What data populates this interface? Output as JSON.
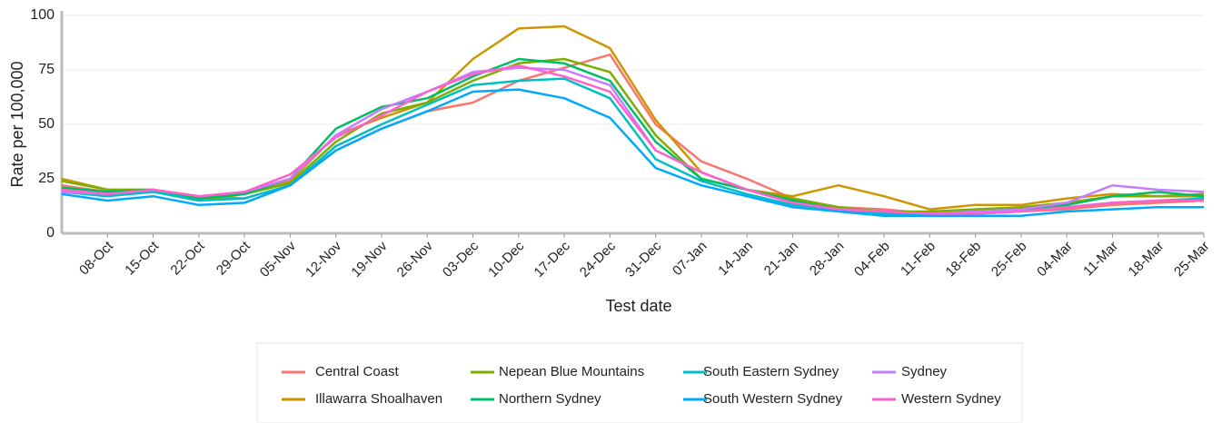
{
  "chart_data": {
    "type": "line",
    "x_label": "Test date",
    "y_label": "Rate per 100,000",
    "categories": [
      null,
      "08-Oct",
      "15-Oct",
      "22-Oct",
      "29-Oct",
      "05-Nov",
      "12-Nov",
      "19-Nov",
      "26-Nov",
      "03-Dec",
      "10-Dec",
      "17-Dec",
      "24-Dec",
      "31-Dec",
      "07-Jan",
      "14-Jan",
      "21-Jan",
      "28-Jan",
      "04-Feb",
      "11-Feb",
      "18-Feb",
      "25-Feb",
      "04-Mar",
      "11-Mar",
      "18-Mar",
      "25-Mar"
    ],
    "ylim": [
      0,
      100
    ],
    "yticks": [
      0,
      25,
      50,
      75,
      100
    ],
    "grid": true,
    "series": [
      {
        "name": "Central Coast",
        "color": "#F8766D",
        "values": [
          22,
          19,
          20,
          17,
          16,
          22,
          38,
          48,
          56,
          60,
          70,
          76,
          82,
          50,
          33,
          25,
          16,
          12,
          11,
          9,
          9,
          10,
          11,
          13,
          14,
          15
        ]
      },
      {
        "name": "Illawarra Shoalhaven",
        "color": "#CD9600",
        "values": [
          25,
          20,
          20,
          17,
          18,
          24,
          45,
          53,
          60,
          80,
          94,
          95,
          85,
          52,
          28,
          20,
          17,
          22,
          17,
          11,
          13,
          13,
          16,
          18,
          17,
          17
        ]
      },
      {
        "name": "Nepean Blue Mountains",
        "color": "#7CAE00",
        "values": [
          24,
          20,
          20,
          15,
          18,
          23,
          42,
          55,
          60,
          70,
          78,
          80,
          74,
          45,
          25,
          20,
          16,
          12,
          10,
          10,
          11,
          12,
          14,
          17,
          17,
          18
        ]
      },
      {
        "name": "Northern Sydney",
        "color": "#00BE67",
        "values": [
          21,
          19,
          20,
          16,
          18,
          25,
          48,
          58,
          62,
          72,
          80,
          78,
          70,
          42,
          25,
          20,
          15,
          11,
          9,
          9,
          10,
          11,
          13,
          17,
          19,
          17
        ]
      },
      {
        "name": "South Eastern Sydney",
        "color": "#00BFC4",
        "values": [
          19,
          17,
          19,
          15,
          16,
          22,
          40,
          50,
          59,
          68,
          70,
          71,
          62,
          34,
          24,
          18,
          13,
          11,
          9,
          8,
          9,
          10,
          12,
          14,
          15,
          16
        ]
      },
      {
        "name": "South Western Sydney",
        "color": "#00A9FF",
        "values": [
          18,
          15,
          17,
          13,
          14,
          22,
          38,
          48,
          56,
          65,
          66,
          62,
          53,
          30,
          22,
          17,
          12,
          10,
          8,
          8,
          8,
          8,
          10,
          11,
          12,
          12
        ]
      },
      {
        "name": "Sydney",
        "color": "#C77CFF",
        "values": [
          19,
          18,
          20,
          17,
          19,
          25,
          45,
          57,
          65,
          74,
          76,
          75,
          68,
          38,
          28,
          20,
          14,
          11,
          10,
          9,
          10,
          11,
          14,
          22,
          20,
          19
        ]
      },
      {
        "name": "Western Sydney",
        "color": "#FF61CC",
        "values": [
          20,
          18,
          20,
          17,
          19,
          27,
          44,
          54,
          65,
          73,
          77,
          72,
          65,
          38,
          28,
          20,
          14,
          11,
          10,
          9,
          9,
          10,
          12,
          14,
          15,
          15
        ]
      }
    ]
  }
}
